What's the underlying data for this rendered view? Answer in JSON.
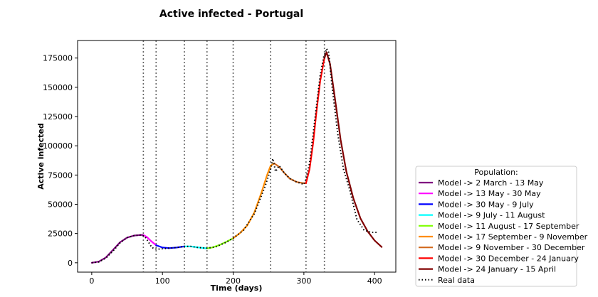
{
  "chart_data": {
    "type": "line",
    "title": "Active infected - Portugal",
    "xlabel": "Time (days)",
    "ylabel": "Active infected",
    "xlim": [
      -20,
      430
    ],
    "ylim": [
      -8000,
      190000
    ],
    "xticks": [
      0,
      100,
      200,
      300,
      400
    ],
    "yticks": [
      0,
      25000,
      50000,
      75000,
      100000,
      125000,
      150000,
      175000
    ],
    "vlines": [
      73,
      91,
      131,
      163,
      200,
      253,
      303,
      329
    ],
    "legend": {
      "title": "Population:",
      "position": "lower-right-outside"
    },
    "series": [
      {
        "name": "Model -> 2 March - 13 May",
        "color": "#800080",
        "style": "solid",
        "x": [
          0,
          10,
          20,
          30,
          40,
          50,
          60,
          70,
          73
        ],
        "y": [
          0,
          1000,
          4500,
          11000,
          17500,
          21500,
          23300,
          23800,
          23700
        ]
      },
      {
        "name": "Model -> 13 May - 30 May",
        "color": "#ff00ff",
        "style": "solid",
        "x": [
          73,
          78,
          84,
          91
        ],
        "y": [
          23700,
          22000,
          18500,
          15000
        ]
      },
      {
        "name": "Model -> 30 May - 9 July",
        "color": "#0000ff",
        "style": "solid",
        "x": [
          91,
          100,
          110,
          120,
          131
        ],
        "y": [
          15000,
          13000,
          12500,
          13000,
          14000
        ]
      },
      {
        "name": "Model -> 9 July - 11 August",
        "color": "#00ffff",
        "style": "solid",
        "x": [
          131,
          140,
          150,
          163
        ],
        "y": [
          14000,
          14000,
          13200,
          12300
        ]
      },
      {
        "name": "Model -> 11 August - 17 September",
        "color": "#7fff00",
        "style": "solid",
        "x": [
          163,
          170,
          180,
          190,
          200
        ],
        "y": [
          12300,
          13000,
          15000,
          17800,
          21000
        ]
      },
      {
        "name": "Model -> 17 September - 9 November",
        "color": "#ff8c00",
        "style": "solid",
        "x": [
          200,
          210,
          220,
          230,
          240,
          248,
          253,
          258
        ],
        "y": [
          21000,
          25500,
          32000,
          43000,
          60000,
          75000,
          83000,
          85000
        ]
      },
      {
        "name": "Model -> 9 November - 30 December",
        "color": "#d2691e",
        "style": "solid",
        "x": [
          258,
          265,
          272,
          280,
          290,
          300,
          303
        ],
        "y": [
          85000,
          82000,
          77000,
          72000,
          69000,
          68000,
          68000
        ]
      },
      {
        "name": "Model -> 30 December - 24 January",
        "color": "#ff0000",
        "style": "solid",
        "x": [
          303,
          308,
          313,
          318,
          323,
          329
        ],
        "y": [
          68000,
          80000,
          102000,
          130000,
          155000,
          175000
        ]
      },
      {
        "name": "Model -> 24 January - 15 April",
        "color": "#800000",
        "style": "solid",
        "x": [
          329,
          332,
          337,
          344,
          352,
          360,
          370,
          380,
          390,
          400,
          410
        ],
        "y": [
          175000,
          180000,
          170000,
          140000,
          105000,
          78000,
          55000,
          38000,
          27000,
          19000,
          13500
        ]
      },
      {
        "name": "Real data",
        "color": "#000000",
        "style": "dotted",
        "x": [
          0,
          10,
          20,
          30,
          40,
          50,
          60,
          70,
          75,
          80,
          85,
          92,
          100,
          110,
          120,
          131,
          140,
          150,
          163,
          175,
          190,
          200,
          215,
          230,
          245,
          253,
          256,
          260,
          265,
          272,
          280,
          290,
          300,
          303,
          308,
          313,
          318,
          323,
          328,
          332,
          335,
          340,
          348,
          356,
          365,
          375,
          385,
          395,
          403
        ],
        "y": [
          0,
          700,
          4000,
          10000,
          17000,
          21500,
          23200,
          23800,
          22500,
          18000,
          13000,
          11500,
          12000,
          12500,
          13000,
          14000,
          14000,
          13000,
          12500,
          13500,
          17500,
          21000,
          28000,
          42000,
          65000,
          80000,
          89000,
          78000,
          83000,
          77000,
          72000,
          69000,
          67000,
          72000,
          85000,
          110000,
          135000,
          160000,
          176000,
          183000,
          180000,
          150000,
          110000,
          80000,
          62000,
          37000,
          28000,
          26000,
          26000
        ]
      }
    ]
  }
}
